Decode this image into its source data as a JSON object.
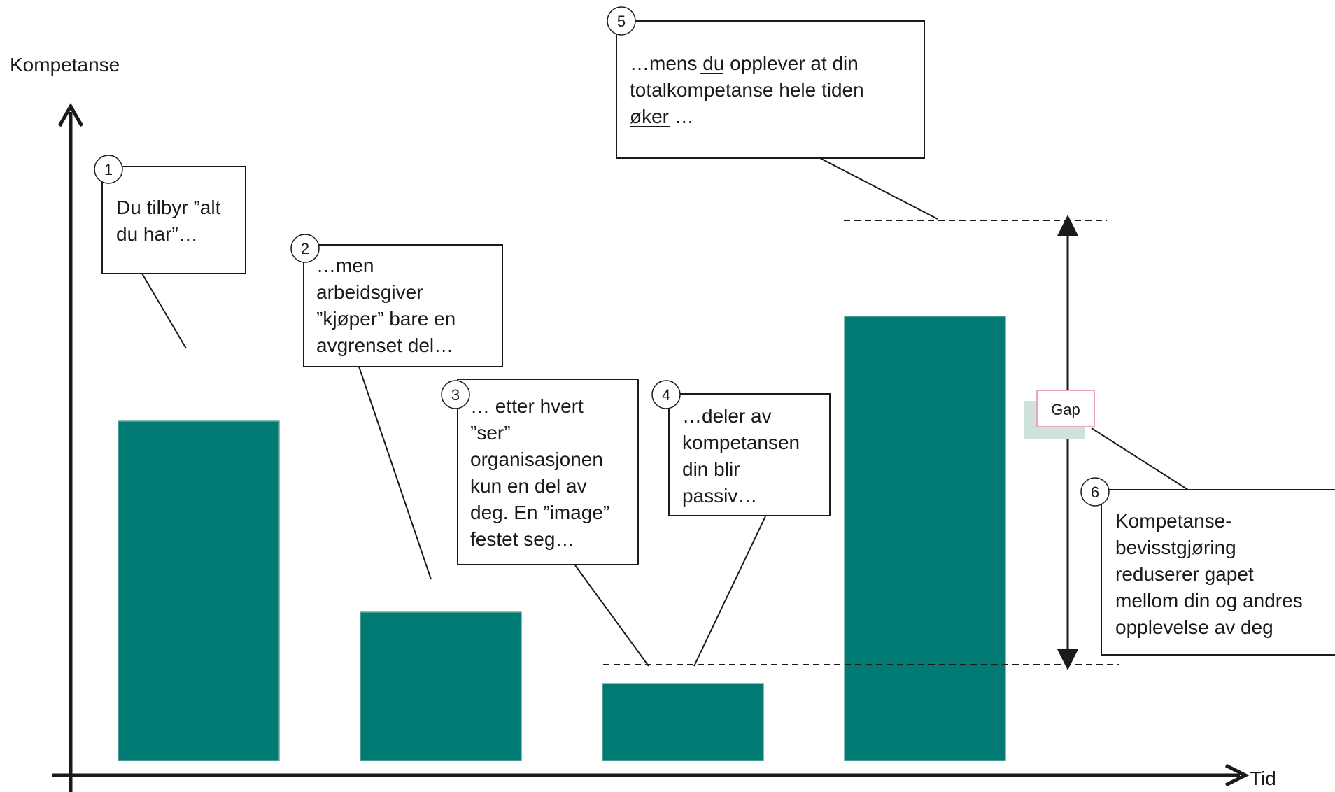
{
  "axes": {
    "y_label": "Kompetanse",
    "x_label": "Tid"
  },
  "colors": {
    "bar": "#007A72",
    "bar_edge": "#5FA89F",
    "line": "#1a1a1a",
    "gap_label_border": "#E8A6B8",
    "gap_label_shadow": "#CFE3DA"
  },
  "gap_label": "Gap",
  "bars": [
    {
      "name": "bar-1",
      "relative_level": 0.55
    },
    {
      "name": "bar-2",
      "relative_level": 0.24
    },
    {
      "name": "bar-3",
      "relative_level": 0.125
    },
    {
      "name": "bar-4",
      "relative_level": 0.72
    }
  ],
  "callouts": [
    {
      "number": "1",
      "lines": [
        "Du tilbyr ”alt",
        "du har”…"
      ]
    },
    {
      "number": "2",
      "lines": [
        "…men",
        "arbeidsgiver",
        "”kjøper” bare en",
        "avgrenset del…"
      ]
    },
    {
      "number": "3",
      "lines": [
        "… etter hvert",
        "”ser”",
        "organisasjonen",
        "kun en del av",
        "deg. En ”image”",
        "festet seg…"
      ]
    },
    {
      "number": "4",
      "lines": [
        "…deler av",
        "kompetansen",
        "din blir",
        "passiv…"
      ]
    },
    {
      "number": "5",
      "lines": [
        "…mens du opplever at din",
        "totalkompetanse hele tiden",
        "øker …"
      ],
      "underlined_words": [
        "du",
        "øker"
      ]
    },
    {
      "number": "6",
      "lines": [
        "Kompetanse-",
        "bevisstgjøring",
        "reduserer gapet",
        "mellom din og andres",
        "opplevelse av deg"
      ]
    }
  ]
}
